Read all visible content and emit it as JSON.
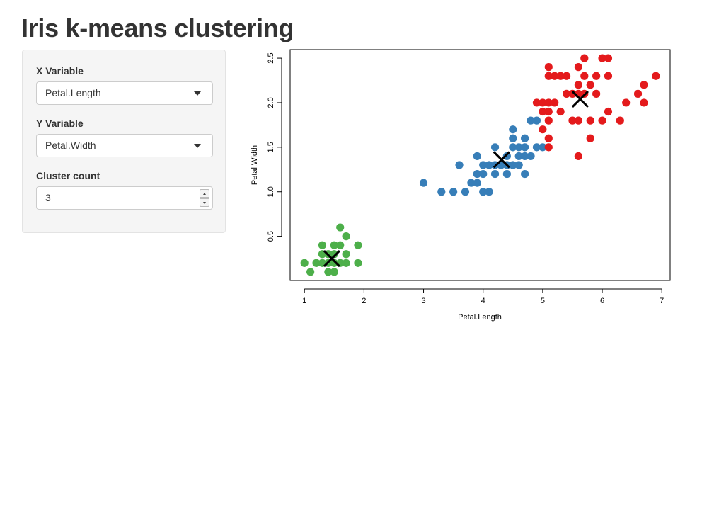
{
  "page": {
    "title": "Iris k-means clustering"
  },
  "controls": {
    "x_variable": {
      "label": "X Variable",
      "value": "Petal.Length"
    },
    "y_variable": {
      "label": "Y Variable",
      "value": "Petal.Width"
    },
    "cluster_count": {
      "label": "Cluster count",
      "value": "3"
    }
  },
  "chart_data": {
    "type": "scatter",
    "title": "",
    "xlabel": "Petal.Length",
    "ylabel": "Petal.Width",
    "xlim": [
      0.76,
      7.14
    ],
    "ylim": [
      0.004,
      2.596
    ],
    "x_ticks": [
      1,
      2,
      3,
      4,
      5,
      6,
      7
    ],
    "y_ticks": [
      0.5,
      1.0,
      1.5,
      2.0,
      2.5
    ],
    "x_tick_labels": [
      "1",
      "2",
      "3",
      "4",
      "5",
      "6",
      "7"
    ],
    "y_tick_labels": [
      "0.5",
      "1.0",
      "1.5",
      "2.0",
      "2.5"
    ],
    "grid": false,
    "legend": "none",
    "colors": {
      "cluster_1": "#4DAF4A",
      "cluster_2": "#377EB8",
      "cluster_3": "#E41A1C",
      "centers": "#000000"
    },
    "series": [
      {
        "color": "#4DAF4A",
        "points": [
          [
            1.0,
            0.2
          ],
          [
            1.1,
            0.1
          ],
          [
            1.2,
            0.2
          ],
          [
            1.3,
            0.2
          ],
          [
            1.3,
            0.3
          ],
          [
            1.3,
            0.4
          ],
          [
            1.4,
            0.1
          ],
          [
            1.4,
            0.2
          ],
          [
            1.4,
            0.3
          ],
          [
            1.5,
            0.1
          ],
          [
            1.5,
            0.2
          ],
          [
            1.5,
            0.3
          ],
          [
            1.5,
            0.4
          ],
          [
            1.6,
            0.2
          ],
          [
            1.6,
            0.4
          ],
          [
            1.6,
            0.6
          ],
          [
            1.7,
            0.2
          ],
          [
            1.7,
            0.3
          ],
          [
            1.7,
            0.5
          ],
          [
            1.9,
            0.2
          ],
          [
            1.9,
            0.4
          ]
        ]
      },
      {
        "color": "#377EB8",
        "points": [
          [
            3.0,
            1.1
          ],
          [
            3.3,
            1.0
          ],
          [
            3.5,
            1.0
          ],
          [
            3.6,
            1.3
          ],
          [
            3.7,
            1.0
          ],
          [
            3.8,
            1.1
          ],
          [
            3.9,
            1.1
          ],
          [
            3.9,
            1.2
          ],
          [
            3.9,
            1.4
          ],
          [
            4.0,
            1.0
          ],
          [
            4.0,
            1.2
          ],
          [
            4.0,
            1.3
          ],
          [
            4.1,
            1.0
          ],
          [
            4.1,
            1.3
          ],
          [
            4.2,
            1.2
          ],
          [
            4.2,
            1.3
          ],
          [
            4.2,
            1.5
          ],
          [
            4.3,
            1.3
          ],
          [
            4.4,
            1.2
          ],
          [
            4.4,
            1.3
          ],
          [
            4.4,
            1.4
          ],
          [
            4.5,
            1.3
          ],
          [
            4.5,
            1.5
          ],
          [
            4.5,
            1.6
          ],
          [
            4.5,
            1.7
          ],
          [
            4.6,
            1.3
          ],
          [
            4.6,
            1.4
          ],
          [
            4.6,
            1.5
          ],
          [
            4.7,
            1.2
          ],
          [
            4.7,
            1.4
          ],
          [
            4.7,
            1.5
          ],
          [
            4.7,
            1.6
          ],
          [
            4.8,
            1.4
          ],
          [
            4.8,
            1.8
          ],
          [
            4.9,
            1.5
          ],
          [
            4.9,
            1.8
          ],
          [
            5.0,
            1.5
          ]
        ]
      },
      {
        "color": "#E41A1C",
        "points": [
          [
            4.9,
            2.0
          ],
          [
            5.0,
            2.0
          ],
          [
            5.0,
            1.9
          ],
          [
            5.1,
            2.0
          ],
          [
            5.1,
            1.9
          ],
          [
            5.1,
            1.8
          ],
          [
            5.1,
            1.6
          ],
          [
            5.1,
            1.5
          ],
          [
            5.0,
            1.7
          ],
          [
            5.1,
            2.3
          ],
          [
            5.1,
            2.4
          ],
          [
            5.2,
            2.0
          ],
          [
            5.2,
            2.3
          ],
          [
            5.3,
            1.9
          ],
          [
            5.3,
            2.3
          ],
          [
            5.4,
            2.3
          ],
          [
            5.4,
            2.1
          ],
          [
            5.5,
            1.8
          ],
          [
            5.5,
            2.1
          ],
          [
            5.6,
            1.8
          ],
          [
            5.6,
            1.4
          ],
          [
            5.6,
            2.1
          ],
          [
            5.6,
            2.2
          ],
          [
            5.6,
            2.4
          ],
          [
            5.7,
            2.1
          ],
          [
            5.7,
            2.3
          ],
          [
            5.7,
            2.5
          ],
          [
            5.8,
            1.6
          ],
          [
            5.8,
            1.8
          ],
          [
            5.8,
            2.2
          ],
          [
            5.9,
            2.1
          ],
          [
            5.9,
            2.3
          ],
          [
            6.0,
            1.8
          ],
          [
            6.0,
            2.5
          ],
          [
            6.1,
            1.9
          ],
          [
            6.1,
            2.3
          ],
          [
            6.1,
            2.5
          ],
          [
            6.3,
            1.8
          ],
          [
            6.4,
            2.0
          ],
          [
            6.6,
            2.1
          ],
          [
            6.7,
            2.0
          ],
          [
            6.7,
            2.2
          ],
          [
            6.9,
            2.3
          ]
        ]
      }
    ],
    "centers": [
      [
        1.46,
        0.25
      ],
      [
        4.31,
        1.36
      ],
      [
        5.63,
        2.04
      ]
    ]
  }
}
